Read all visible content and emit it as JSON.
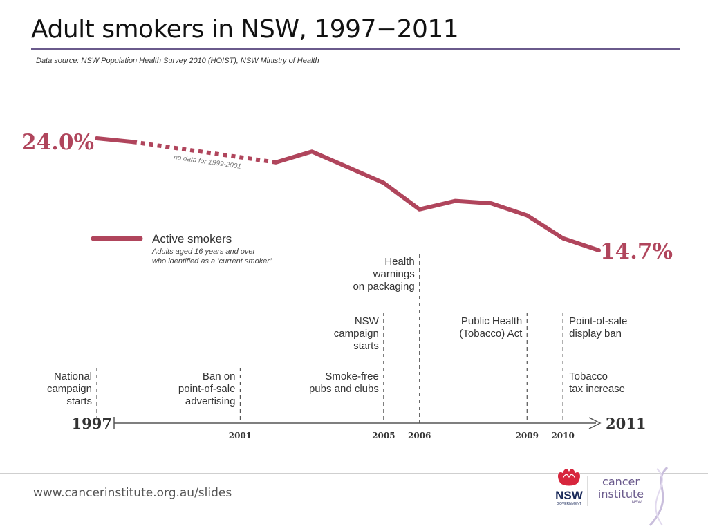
{
  "title": "Adult smokers in NSW, 1997−2011",
  "source": "Data source: NSW Population Health Survey 2010 (HOIST), NSW Ministry of Health",
  "footer": {
    "url": "www.cancerinstitute.org.au/slides"
  },
  "logos": {
    "nsw": "NSW",
    "nsw_sub": "GOVERNMENT",
    "ci_line1": "cancer",
    "ci_line2": "institute",
    "ci_line3": "NSW"
  },
  "colors": {
    "series": "#b0455c",
    "title_rule": "#6a5a8c",
    "axis": "#555555"
  },
  "chart_data": {
    "type": "line",
    "x": [
      1997,
      1998,
      2002,
      2003,
      2004,
      2005,
      2006,
      2007,
      2008,
      2009,
      2010,
      2011
    ],
    "series": [
      {
        "name": "Active smokers",
        "values": [
          24.0,
          23.7,
          22.0,
          22.9,
          21.6,
          20.3,
          18.1,
          18.8,
          18.6,
          17.6,
          15.7,
          14.7
        ]
      }
    ],
    "gap": {
      "from": 1998,
      "to": 2002,
      "style": "dotted",
      "note": "no data for 1999-2001"
    },
    "start_label": "24.0%",
    "end_label": "14.7%",
    "legend": {
      "label": "Active smokers",
      "sub1": "Adults aged 16 years and over",
      "sub2": "who identified as a ‘current smoker’",
      "position": "left"
    },
    "axis": {
      "start_label": "1997",
      "end_label": "2011",
      "ticks": [
        {
          "year": 2001,
          "label": "2001"
        },
        {
          "year": 2005,
          "label": "2005"
        },
        {
          "year": 2006,
          "label": "2006"
        },
        {
          "year": 2009,
          "label": "2009"
        },
        {
          "year": 2010,
          "label": "2010"
        }
      ]
    },
    "events": [
      {
        "year": 1997,
        "side": "left",
        "tier": "low",
        "lines": [
          "National",
          "campaign",
          "starts"
        ]
      },
      {
        "year": 2001,
        "side": "left",
        "tier": "low",
        "lines": [
          "Ban on",
          "point-of-sale",
          "advertising"
        ]
      },
      {
        "year": 2005,
        "side": "left",
        "tier": "low",
        "lines": [
          "Smoke-free",
          "pubs and clubs"
        ]
      },
      {
        "year": 2005,
        "side": "left",
        "tier": "mid",
        "lines": [
          "NSW",
          "campaign",
          "starts"
        ]
      },
      {
        "year": 2006,
        "side": "left",
        "tier": "high",
        "lines": [
          "Health",
          "warnings",
          "on packaging"
        ]
      },
      {
        "year": 2009,
        "side": "left",
        "tier": "mid",
        "lines": [
          "Public Health",
          "(Tobacco) Act"
        ]
      },
      {
        "year": 2010,
        "side": "right",
        "tier": "mid",
        "lines": [
          "Point-of-sale",
          "display ban"
        ]
      },
      {
        "year": 2010,
        "side": "right",
        "tier": "low",
        "lines": [
          "Tobacco",
          "tax increase"
        ]
      }
    ]
  }
}
